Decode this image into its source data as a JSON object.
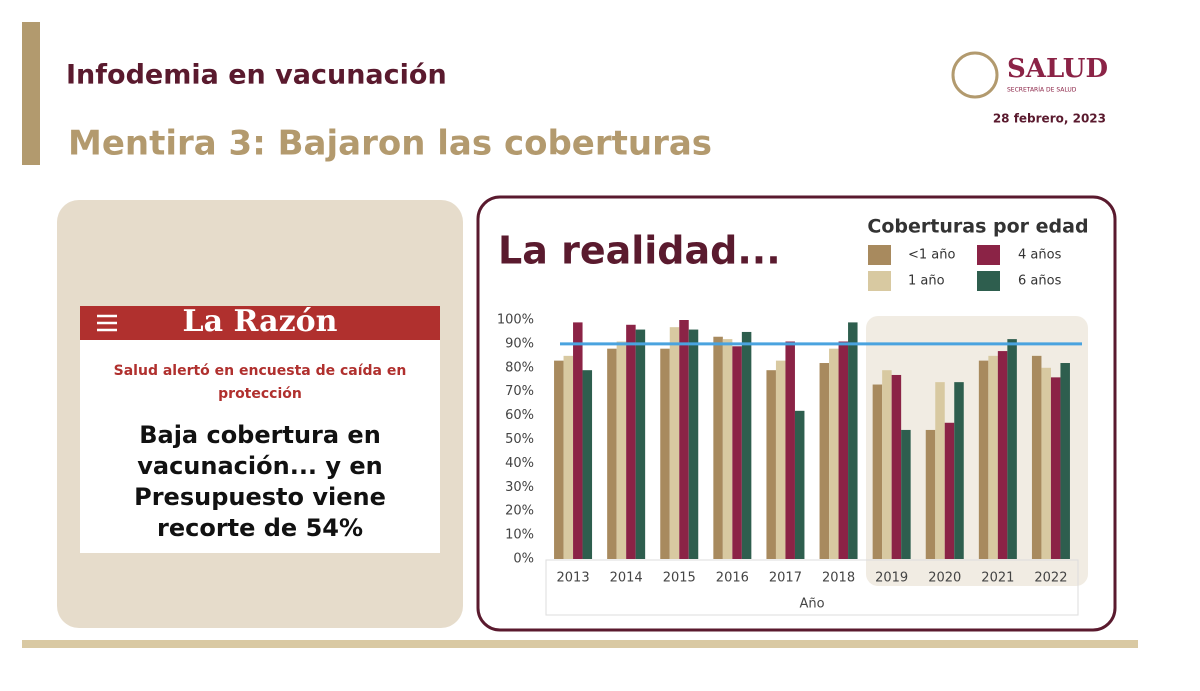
{
  "header": {
    "title": "Infodemia en vacunación",
    "subtitle": "Mentira 3: Bajaron las coberturas",
    "logo": "SALUD",
    "logo_sub": "SECRETARÍA DE SALUD",
    "date": "28 febrero, 2023"
  },
  "newspaper": {
    "masthead": "La Razón",
    "kicker": "Salud alertó en encuesta de caída en protección",
    "headline": "Baja cobertura en vacunación... y en Presupuesto viene recorte de 54%"
  },
  "chart_data": {
    "type": "bar",
    "title": "La realidad...",
    "legend_title": "Coberturas por edad",
    "x_label": "Año",
    "categories": [
      "2013",
      "2014",
      "2015",
      "2016",
      "2017",
      "2018",
      "2019",
      "2020",
      "2021",
      "2022"
    ],
    "series": [
      {
        "name": "<1 año",
        "color": "#a88a5e",
        "values": [
          83,
          88,
          88,
          93,
          79,
          82,
          73,
          54,
          83,
          85
        ]
      },
      {
        "name": "1 año",
        "color": "#d8c9a1",
        "values": [
          85,
          91,
          97,
          92,
          83,
          88,
          79,
          74,
          85,
          80
        ]
      },
      {
        "name": "4 años",
        "color": "#8b2346",
        "values": [
          99,
          98,
          100,
          89,
          91,
          91,
          77,
          57,
          87,
          76
        ]
      },
      {
        "name": "6 años",
        "color": "#2e5e4e",
        "values": [
          79,
          96,
          96,
          95,
          62,
          99,
          54,
          74,
          92,
          82
        ]
      }
    ],
    "ylim": [
      0,
      100
    ],
    "yticks": [
      {
        "value": 0,
        "label": "0%"
      },
      {
        "value": 10,
        "label": "10%"
      },
      {
        "value": 20,
        "label": "20%"
      },
      {
        "value": 30,
        "label": "30%"
      },
      {
        "value": 40,
        "label": "40%"
      },
      {
        "value": 50,
        "label": "50%"
      },
      {
        "value": 60,
        "label": "60%"
      },
      {
        "value": 70,
        "label": "70%"
      },
      {
        "value": 80,
        "label": "80%"
      },
      {
        "value": 90,
        "label": "90%"
      },
      {
        "value": 100,
        "label": "100%"
      }
    ],
    "reference_line": {
      "value": 90,
      "color": "#4aa3df"
    }
  }
}
